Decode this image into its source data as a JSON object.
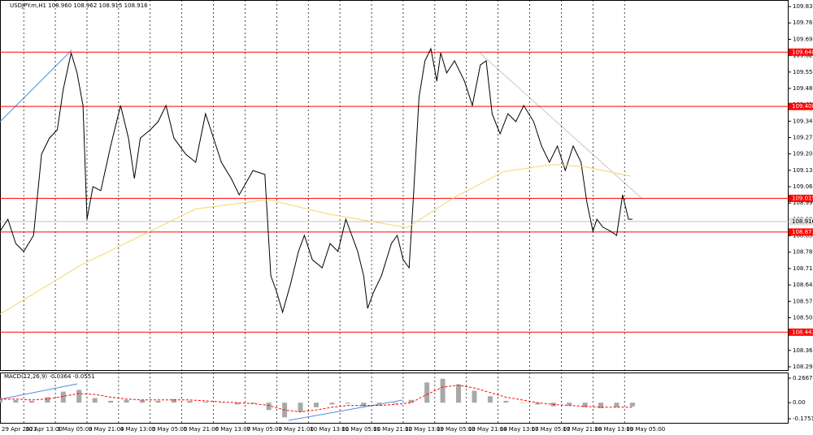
{
  "chart_data": [
    {
      "type": "line",
      "title": "USDJPY.m,H1 108.960 108.962 108.915 108.916",
      "series": [
        {
          "color": "#000000",
          "x": [
            0,
            4,
            8,
            12,
            17,
            21,
            25,
            29,
            32,
            36,
            39,
            42,
            44,
            47,
            51,
            56,
            61,
            65,
            68,
            71,
            76,
            80,
            84,
            88,
            94,
            99,
            104,
            108,
            112,
            117,
            121,
            128,
            134,
            137,
            140,
            143,
            147,
            151,
            154,
            158,
            163,
            167,
            171,
            175,
            178,
            181,
            184,
            186,
            189,
            193,
            198,
            201,
            204,
            207,
            209,
            212,
            215,
            218,
            221,
            223,
            226,
            230,
            235,
            239,
            243,
            246,
            249,
            253,
            257,
            261,
            265,
            270,
            274,
            278,
            282,
            286,
            290,
            294,
            297,
            300,
            302,
            305,
            309,
            312,
            315,
            318,
            320
          ],
          "values": [
            108.874,
            108.926,
            108.822,
            108.788,
            108.857,
            109.204,
            109.273,
            109.308,
            109.481,
            109.637,
            109.551,
            109.412,
            108.926,
            109.065,
            109.048,
            109.239,
            109.412,
            109.273,
            109.1,
            109.273,
            109.308,
            109.343,
            109.412,
            109.273,
            109.204,
            109.169,
            109.377,
            109.273,
            109.169,
            109.1,
            109.03,
            109.134,
            109.117,
            108.684,
            108.614,
            108.528,
            108.649,
            108.788,
            108.857,
            108.753,
            108.718,
            108.822,
            108.788,
            108.926,
            108.857,
            108.788,
            108.684,
            108.545,
            108.614,
            108.684,
            108.822,
            108.857,
            108.753,
            108.718,
            108.996,
            109.447,
            109.603,
            109.655,
            109.516,
            109.637,
            109.551,
            109.603,
            109.516,
            109.412,
            109.585,
            109.603,
            109.377,
            109.291,
            109.377,
            109.343,
            109.412,
            109.343,
            109.239,
            109.169,
            109.239,
            109.134,
            109.239,
            109.169,
            108.996,
            108.874,
            108.926,
            108.892,
            108.874,
            108.857,
            109.03,
            108.926,
            108.926
          ]
        },
        {
          "color": "#f3d76a",
          "x": [
            0,
            41,
            99,
            136,
            165,
            206,
            230,
            255,
            280,
            296,
            319
          ],
          "values": [
            108.52,
            108.73,
            108.97,
            109.01,
            108.95,
            108.89,
            109.02,
            109.13,
            109.16,
            109.15,
            109.11
          ]
        }
      ],
      "levels": [
        {
          "value": 109.64,
          "label": "109.640"
        },
        {
          "value": 109.408,
          "label": "109.408"
        },
        {
          "value": 109.015,
          "label": "109.015"
        },
        108.871,
        {
          "value": 108.443,
          "label": "108.443"
        }
      ],
      "level_color": "#ff0000",
      "current_price": 108.916,
      "xlim": [
        0,
        399
      ],
      "xticks": [
        {
          "value": 0,
          "label": "29 Apr 2021"
        },
        {
          "value": 12,
          "label": "30 Apr 13:00"
        },
        {
          "value": 28,
          "label": "3 May 05:00"
        },
        {
          "value": 44,
          "label": "3 May 21:00"
        },
        {
          "value": 60,
          "label": "4 May 13:00"
        },
        {
          "value": 76,
          "label": "5 May 05:00"
        },
        {
          "value": 92,
          "label": "5 May 21:00"
        },
        {
          "value": 108,
          "label": "6 May 13:00"
        },
        {
          "value": 124,
          "label": "7 May 05:00"
        },
        {
          "value": 140,
          "label": "7 May 21:00"
        },
        {
          "value": 156,
          "label": "10 May 13:00"
        },
        {
          "value": 172,
          "label": "11 May 05:00"
        },
        {
          "value": 188,
          "label": "11 May 21:00"
        },
        {
          "value": 204,
          "label": "12 May 13:00"
        },
        {
          "value": 220,
          "label": "13 May 05:00"
        },
        {
          "value": 236,
          "label": "13 May 21:00"
        },
        {
          "value": 252,
          "label": "14 May 13:00"
        },
        {
          "value": 268,
          "label": "17 May 05:00"
        },
        {
          "value": 284,
          "label": "17 May 21:00"
        },
        {
          "value": 300,
          "label": "18 May 13:00"
        },
        {
          "value": 316,
          "label": "19 May 05:00"
        }
      ],
      "ylim": [
        108.281,
        109.863
      ],
      "yticks": [
        109.835,
        109.765,
        109.695,
        109.625,
        109.555,
        109.485,
        109.415,
        109.345,
        109.275,
        109.205,
        109.135,
        109.065,
        108.995,
        108.925,
        108.855,
        108.785,
        108.715,
        108.645,
        108.575,
        108.505,
        108.435,
        108.365,
        108.295
      ]
    },
    {
      "type": "macd",
      "title": "MACD(12,26,9) -0.0364 -0.0551",
      "x": [
        0,
        8,
        16,
        24,
        32,
        40,
        48,
        56,
        64,
        72,
        80,
        88,
        96,
        104,
        112,
        120,
        128,
        136,
        144,
        152,
        160,
        168,
        176,
        184,
        192,
        200,
        208,
        216,
        224,
        232,
        240,
        248,
        256,
        264,
        272,
        280,
        288,
        296,
        304,
        312,
        320
      ],
      "series": [
        {
          "color": "#a8a8a8",
          "values": [
            0.05,
            0.03,
            0.02,
            0.06,
            0.12,
            0.14,
            0.05,
            0.02,
            0.03,
            0.03,
            0.02,
            0.04,
            0.02,
            0.01,
            0,
            -0.02,
            -0.01,
            -0.08,
            -0.16,
            -0.1,
            -0.05,
            -0.02,
            -0.01,
            -0.04,
            -0.03,
            -0.01,
            0.03,
            0.22,
            0.26,
            0.2,
            0.13,
            0.07,
            0.02,
            0,
            -0.02,
            -0.04,
            -0.03,
            -0.05,
            -0.06,
            -0.05,
            -0.04
          ]
        },
        {
          "color": "#ff0000",
          "values": [
            0.04,
            0.04,
            0.03,
            0.04,
            0.07,
            0.1,
            0.09,
            0.06,
            0.04,
            0.03,
            0.03,
            0.03,
            0.03,
            0.02,
            0.01,
            0,
            -0.01,
            -0.03,
            -0.08,
            -0.1,
            -0.08,
            -0.05,
            -0.03,
            -0.03,
            -0.03,
            -0.02,
            0,
            0.09,
            0.17,
            0.19,
            0.16,
            0.11,
            0.06,
            0.03,
            0,
            -0.02,
            -0.03,
            -0.04,
            -0.05,
            -0.05,
            -0.05
          ]
        }
      ],
      "ylim": [
        -0.1751,
        0.2667
      ],
      "yticks": [
        0.2667,
        {
          "value": 0,
          "label": "0.00"
        },
        -0.1751
      ]
    }
  ]
}
